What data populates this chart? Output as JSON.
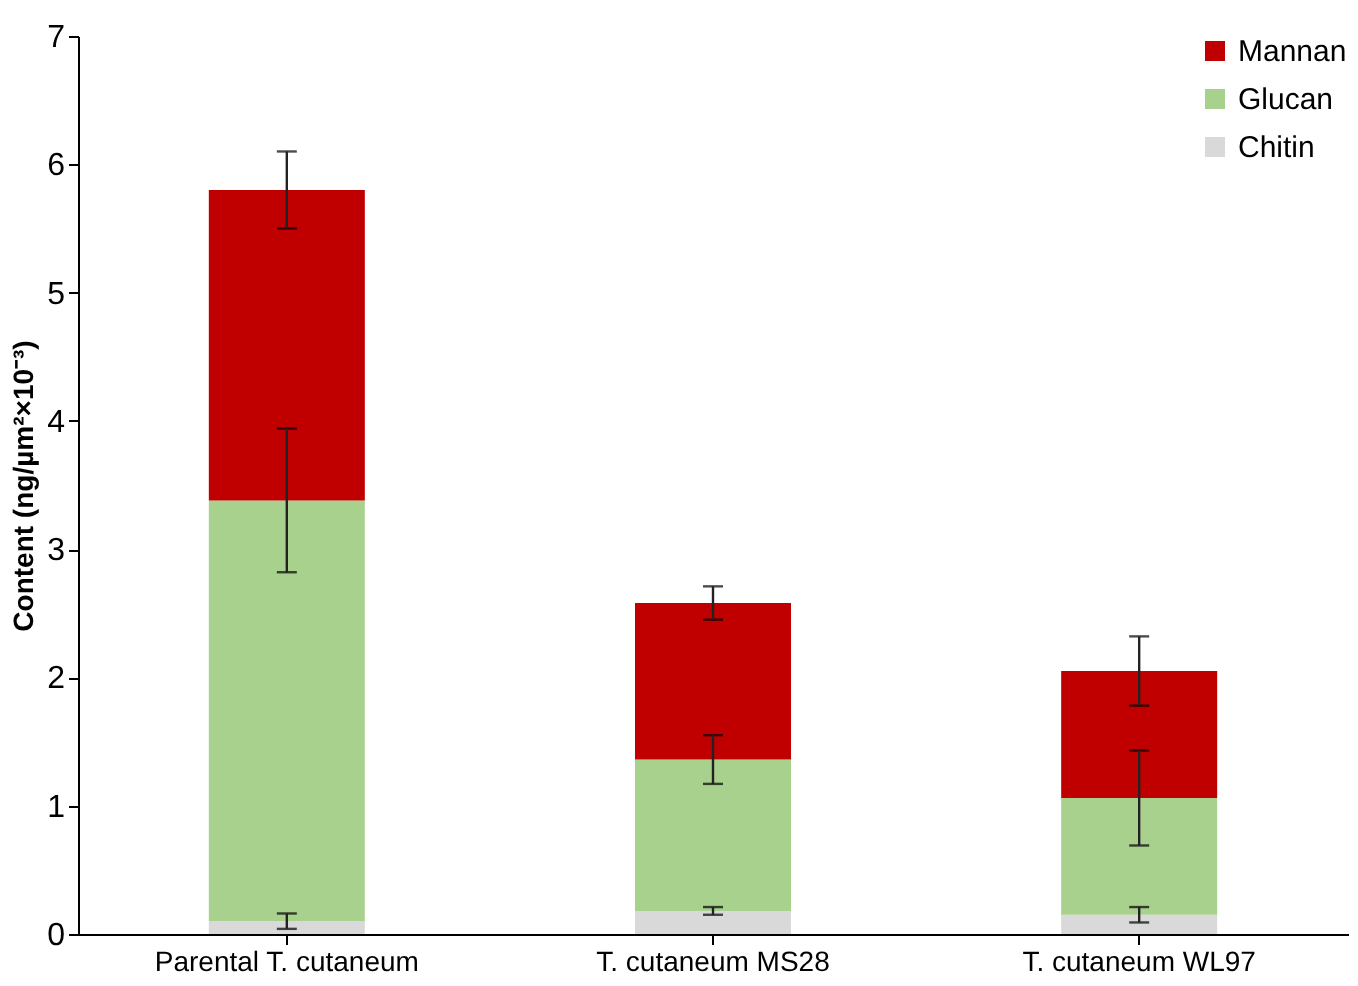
{
  "chart_data": {
    "type": "bar",
    "stacked": true,
    "ylabel": "Content  (ng/µm²×10⁻³)",
    "categories": [
      "Parental T. cutaneum",
      "T. cutaneum  MS28",
      "T. cutaneum  WL97"
    ],
    "series": [
      {
        "name": "Chitin",
        "color": "#d9d9d9",
        "values": [
          0.1,
          0.18,
          0.15
        ],
        "errors": [
          0.06,
          0.03,
          0.06
        ]
      },
      {
        "name": "Glucan",
        "color": "#a9d18e",
        "values": [
          3.28,
          1.18,
          0.91
        ],
        "errors": [
          0.56,
          0.19,
          0.37
        ]
      },
      {
        "name": "Mannan",
        "color": "#c00000",
        "values": [
          2.42,
          1.22,
          0.99
        ],
        "errors": [
          0.3,
          0.13,
          0.27
        ]
      }
    ],
    "ylim": [
      0,
      7
    ],
    "yticks": [
      0,
      1,
      2,
      3,
      4,
      5,
      6,
      7
    ],
    "grid": false,
    "legend": "top right"
  }
}
